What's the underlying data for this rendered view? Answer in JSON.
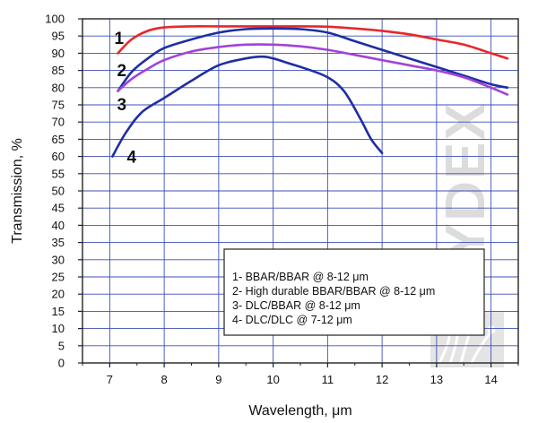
{
  "chart_data": {
    "type": "line",
    "xlabel": "Wavelength, μm",
    "ylabel": "Transmission, %",
    "xlim": [
      6.5,
      14.5
    ],
    "ylim": [
      0,
      100
    ],
    "x_ticks": [
      7,
      8,
      9,
      10,
      11,
      12,
      13,
      14
    ],
    "y_ticks": [
      0,
      5,
      10,
      15,
      20,
      25,
      30,
      35,
      40,
      45,
      50,
      55,
      60,
      65,
      70,
      75,
      80,
      85,
      90,
      95,
      100
    ],
    "grid": true,
    "legend_position": "bottom-right",
    "watermark": "TYDEX",
    "series": [
      {
        "name": "BBAR/BBAR @ 8-12 μm",
        "tag": "1",
        "legend_label": "1-  BBAR/BBAR @ 8-12 μm",
        "color": "#e8262a",
        "x": [
          7.15,
          7.4,
          7.7,
          8.0,
          8.5,
          9.0,
          9.5,
          10.0,
          10.5,
          11.0,
          11.5,
          12.0,
          12.5,
          13.0,
          13.5,
          14.0,
          14.3
        ],
        "y": [
          90,
          94,
          96.5,
          97.5,
          97.8,
          97.8,
          97.8,
          97.8,
          97.8,
          97.7,
          97.2,
          96.5,
          95.5,
          94,
          92.5,
          90,
          88.5
        ]
      },
      {
        "name": "High durable BBAR/BBAR @ 8-12 μm",
        "tag": "2",
        "legend_label": "2-  High durable BBAR/BBAR @ 8-12 μm",
        "color": "#1e2ea3",
        "x": [
          7.15,
          7.4,
          7.7,
          8.0,
          8.5,
          9.0,
          9.5,
          10.0,
          10.5,
          11.0,
          11.5,
          12.0,
          12.5,
          13.0,
          13.5,
          14.0,
          14.3
        ],
        "y": [
          79,
          84.5,
          88.5,
          91.5,
          94,
          96,
          97,
          97.2,
          97,
          96,
          93.5,
          91,
          88.5,
          86,
          83.5,
          81,
          80
        ]
      },
      {
        "name": "DLC/BBAR @ 8-12 μm",
        "tag": "3",
        "legend_label": "3-  DLC/BBAR @ 8-12 μm",
        "color": "#a342d6",
        "x": [
          7.15,
          7.4,
          7.7,
          8.0,
          8.5,
          9.0,
          9.5,
          10.0,
          10.5,
          11.0,
          11.5,
          12.0,
          12.5,
          13.0,
          13.5,
          14.0,
          14.3
        ],
        "y": [
          79,
          82.5,
          85.5,
          88,
          90.5,
          91.8,
          92.5,
          92.5,
          92,
          91,
          89.5,
          88,
          86.5,
          85,
          83,
          80,
          78
        ]
      },
      {
        "name": "DLC/DLC @ 7-12 μm",
        "tag": "4",
        "legend_label": "4-  DLC/DLC @ 7-12 μm",
        "color": "#1e2ea3",
        "x": [
          7.05,
          7.3,
          7.6,
          8.0,
          8.5,
          9.0,
          9.5,
          9.8,
          10.0,
          10.3,
          10.6,
          11.0,
          11.3,
          11.6,
          11.8,
          12.0
        ],
        "y": [
          60,
          67,
          73,
          77,
          82,
          86.5,
          88.5,
          89,
          88.5,
          87,
          85.5,
          83,
          79,
          71,
          65,
          61
        ]
      }
    ],
    "tag_positions": [
      {
        "tag": "1",
        "x": 7.15,
        "y": 94.5
      },
      {
        "tag": "2",
        "x": 7.2,
        "y": 85.2
      },
      {
        "tag": "3",
        "x": 7.2,
        "y": 75.2
      },
      {
        "tag": "4",
        "x": 7.38,
        "y": 60
      }
    ]
  }
}
